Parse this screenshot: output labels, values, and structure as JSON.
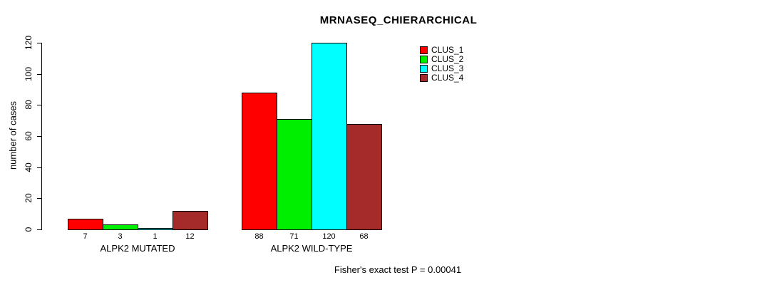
{
  "chart_data": {
    "type": "bar",
    "title": "MRNASEQ_CHIERARCHICAL",
    "ylabel": "number of cases",
    "xlabel": "",
    "ylim": [
      0,
      120
    ],
    "yticks": [
      0,
      20,
      40,
      60,
      80,
      100,
      120
    ],
    "categories": [
      "ALPK2 MUTATED",
      "ALPK2 WILD-TYPE"
    ],
    "series": [
      {
        "name": "CLUS_1",
        "color": "#FF0000",
        "values": [
          7,
          88
        ]
      },
      {
        "name": "CLUS_2",
        "color": "#00EE00",
        "values": [
          3,
          71
        ]
      },
      {
        "name": "CLUS_3",
        "color": "#00FFFF",
        "values": [
          1,
          120
        ]
      },
      {
        "name": "CLUS_4",
        "color": "#A52A2A",
        "values": [
          12,
          68
        ]
      }
    ],
    "bar_value_labels": [
      [
        "7",
        "3",
        "1",
        "12"
      ],
      [
        "88",
        "71",
        "120",
        "68"
      ]
    ],
    "legend_position": "top-right",
    "grid": false,
    "annotation": "Fisher's exact test P = 0.00041"
  }
}
